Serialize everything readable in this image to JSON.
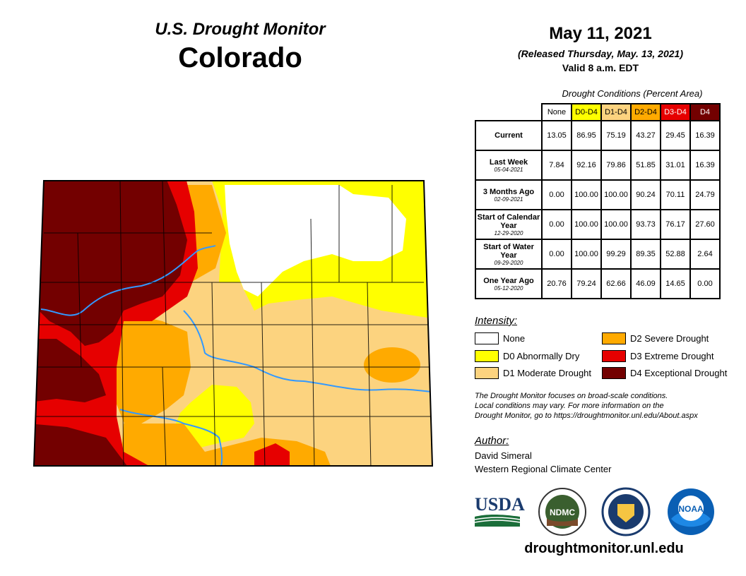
{
  "header": {
    "subtitle": "U.S. Drought Monitor",
    "state": "Colorado",
    "date": "May 11, 2021",
    "released": "(Released Thursday, May. 13, 2021)",
    "valid": "Valid 8 a.m. EDT"
  },
  "table": {
    "caption": "Drought Conditions (Percent Area)",
    "columns": [
      "None",
      "D0-D4",
      "D1-D4",
      "D2-D4",
      "D3-D4",
      "D4"
    ],
    "column_colors": [
      "#ffffff",
      "#ffff00",
      "#fcd37f",
      "#ffaa00",
      "#e60000",
      "#730000"
    ],
    "rows": [
      {
        "label": "Current",
        "date": "",
        "values": [
          "13.05",
          "86.95",
          "75.19",
          "43.27",
          "29.45",
          "16.39"
        ]
      },
      {
        "label": "Last Week",
        "date": "05-04-2021",
        "values": [
          "7.84",
          "92.16",
          "79.86",
          "51.85",
          "31.01",
          "16.39"
        ]
      },
      {
        "label": "3 Months Ago",
        "date": "02-09-2021",
        "values": [
          "0.00",
          "100.00",
          "100.00",
          "90.24",
          "70.11",
          "24.79"
        ]
      },
      {
        "label": "Start of Calendar Year",
        "date": "12-29-2020",
        "values": [
          "0.00",
          "100.00",
          "100.00",
          "93.73",
          "76.17",
          "27.60"
        ]
      },
      {
        "label": "Start of Water Year",
        "date": "09-29-2020",
        "values": [
          "0.00",
          "100.00",
          "99.29",
          "89.35",
          "52.88",
          "2.64"
        ]
      },
      {
        "label": "One Year Ago",
        "date": "05-12-2020",
        "values": [
          "20.76",
          "79.24",
          "62.66",
          "46.09",
          "14.65",
          "0.00"
        ]
      }
    ]
  },
  "legend": {
    "title": "Intensity:",
    "items": [
      {
        "label": "None",
        "color": "#ffffff"
      },
      {
        "label": "D0 Abnormally Dry",
        "color": "#ffff00"
      },
      {
        "label": "D1 Moderate Drought",
        "color": "#fcd37f"
      },
      {
        "label": "D2 Severe Drought",
        "color": "#ffaa00"
      },
      {
        "label": "D3 Extreme Drought",
        "color": "#e60000"
      },
      {
        "label": "D4 Exceptional Drought",
        "color": "#730000"
      }
    ]
  },
  "note": {
    "line1": "The Drought Monitor focuses on broad-scale conditions.",
    "line2": "Local conditions may vary. For more information on the",
    "line3": "Drought Monitor, go to https://droughtmonitor.unl.edu/About.aspx"
  },
  "author": {
    "title": "Author:",
    "name": "David Simeral",
    "org": "Western Regional Climate Center"
  },
  "logos": {
    "usda": "USDA",
    "ndmc": "NDMC",
    "noaa": "NOAA",
    "doc_icon": "eagle-seal-icon"
  },
  "url": "droughtmonitor.unl.edu"
}
